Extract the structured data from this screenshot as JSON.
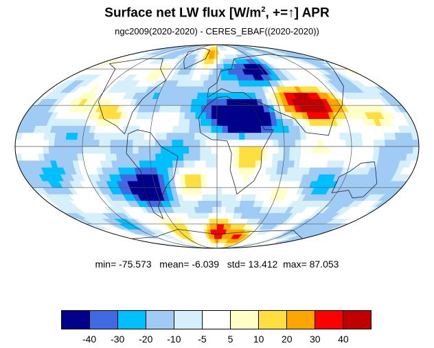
{
  "title": {
    "main": "Surface net LW flux [W/m",
    "sup": "2",
    "rest": ", +=↑]  APR"
  },
  "subtitle": "ngc2009(2020-2020) - CERES_EBAF((2020-2020))",
  "stats": {
    "min_label": "min=",
    "min": "-75.573",
    "mean_label": "mean=",
    "mean": "-6.039",
    "std_label": "std=",
    "std": "13.412",
    "max_label": "max=",
    "max": "87.053"
  },
  "colorbar": {
    "colors": [
      "#00008b",
      "#4169e1",
      "#00bfff",
      "#9fcbf5",
      "#d6f0fb",
      "#ffffff",
      "#ffffc8",
      "#ffdf40",
      "#ffa500",
      "#ff0000",
      "#c00000"
    ],
    "tick_labels": [
      "-40",
      "-30",
      "-20",
      "-10",
      "-5",
      "5",
      "10",
      "20",
      "30",
      "40"
    ]
  },
  "map_data": {
    "projection": "mollweide",
    "blobs": [
      {
        "lon": 95,
        "lat": 35,
        "value": 25
      },
      {
        "lon": 80,
        "lat": 30,
        "value": 30
      },
      {
        "lon": 100,
        "lat": 28,
        "value": 20
      },
      {
        "lon": 10,
        "lat": 20,
        "value": -35
      },
      {
        "lon": 30,
        "lat": 22,
        "value": -30
      },
      {
        "lon": 45,
        "lat": 22,
        "value": -25
      },
      {
        "lon": -65,
        "lat": -20,
        "value": -30
      },
      {
        "lon": -70,
        "lat": -35,
        "value": -25
      },
      {
        "lon": 25,
        "lat": -12,
        "value": 15
      },
      {
        "lon": 30,
        "lat": -5,
        "value": 10
      },
      {
        "lon": -100,
        "lat": 25,
        "value": 12
      },
      {
        "lon": -130,
        "lat": 50,
        "value": 15
      },
      {
        "lon": 0,
        "lat": -72,
        "value": 35
      },
      {
        "lon": 40,
        "lat": -75,
        "value": 30
      },
      {
        "lon": -60,
        "lat": -70,
        "value": 25
      },
      {
        "lon": 20,
        "lat": 58,
        "value": -30
      },
      {
        "lon": 60,
        "lat": 60,
        "value": -25
      },
      {
        "lon": -10,
        "lat": 70,
        "value": 30
      },
      {
        "lon": -20,
        "lat": -30,
        "value": 10
      },
      {
        "lon": 140,
        "lat": 10,
        "value": 12
      },
      {
        "lon": 150,
        "lat": -20,
        "value": -12
      },
      {
        "lon": -150,
        "lat": -10,
        "value": -12
      },
      {
        "lon": 120,
        "lat": -40,
        "value": -10
      },
      {
        "lon": -30,
        "lat": 40,
        "value": -12
      }
    ]
  }
}
